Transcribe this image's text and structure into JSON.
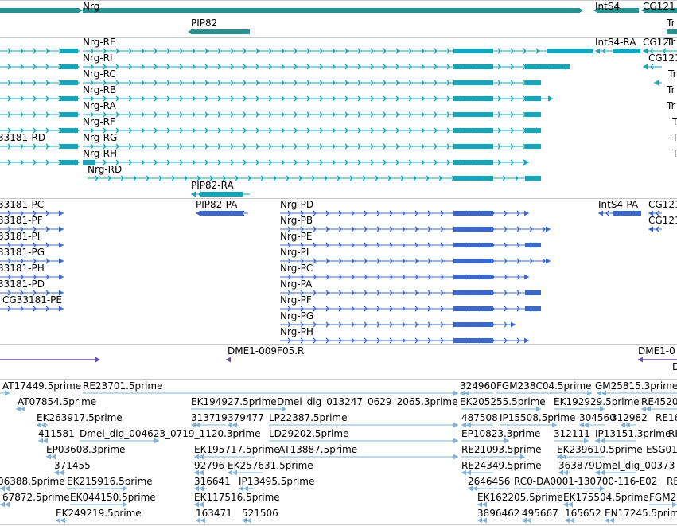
{
  "viewer": {
    "colors": {
      "gene": "#2a8f8f",
      "rna": "#12a6bb",
      "protein": "#3a68cc",
      "oligo": "#6a4ea8",
      "est": "#7fb3d9",
      "separator": "#c8c8c8",
      "text": "#000000"
    },
    "gene_track": {
      "items": [
        {
          "label": "Nrg"
        },
        {
          "label": "IntS4"
        },
        {
          "label": "CG121"
        },
        {
          "label": "PIP82"
        },
        {
          "label": "Tr"
        }
      ]
    },
    "rna_track": {
      "items": [
        {
          "label": "Nrg-RE"
        },
        {
          "label": "Nrg-RI"
        },
        {
          "label": "Nrg-RC"
        },
        {
          "label": "Nrg-RB"
        },
        {
          "label": "Nrg-RA"
        },
        {
          "label": "Nrg-RF"
        },
        {
          "label": "Nrg-RG"
        },
        {
          "label": "Nrg-RH"
        },
        {
          "label": "Nrg-RD"
        },
        {
          "label": "33181-RD"
        },
        {
          "label": "IntS4-RA"
        },
        {
          "label": "CG121"
        },
        {
          "label": "CG121"
        },
        {
          "label": "Tr"
        },
        {
          "label": "Tr"
        },
        {
          "label": "Tr"
        },
        {
          "label": "Tr"
        },
        {
          "label": "T"
        },
        {
          "label": "T"
        },
        {
          "label": "T"
        },
        {
          "label": "PIP82-RA"
        }
      ]
    },
    "protein_track": {
      "items": [
        {
          "label": "33181-PC"
        },
        {
          "label": "33181-PF"
        },
        {
          "label": "33181-PI"
        },
        {
          "label": "33181-PG"
        },
        {
          "label": "33181-PH"
        },
        {
          "label": "33181-PD"
        },
        {
          "label": "CG33181-PE"
        },
        {
          "label": "PIP82-PA"
        },
        {
          "label": "Nrg-PD"
        },
        {
          "label": "Nrg-PB"
        },
        {
          "label": "Nrg-PE"
        },
        {
          "label": "Nrg-PI"
        },
        {
          "label": "Nrg-PC"
        },
        {
          "label": "Nrg-PA"
        },
        {
          "label": "Nrg-PF"
        },
        {
          "label": "Nrg-PG"
        },
        {
          "label": "Nrg-PH"
        },
        {
          "label": "IntS4-PA"
        },
        {
          "label": "CG121"
        },
        {
          "label": "CG121"
        }
      ]
    },
    "oligo_track": {
      "items": [
        {
          "label": "DME1-009F05.R"
        },
        {
          "label": "DME1-0"
        },
        {
          "label": "D"
        }
      ]
    },
    "est_track": {
      "items": [
        {
          "label": "AT17449.5prime"
        },
        {
          "label": "RE23701.5prime"
        },
        {
          "label": "324960"
        },
        {
          "label": "FGM238C04.5prime"
        },
        {
          "label": "GM25815.3prime"
        },
        {
          "label": "AT07854.5prime"
        },
        {
          "label": "EK194927.5prime"
        },
        {
          "label": "Dmel_dig_013247_0629_2065.3prime"
        },
        {
          "label": "EK205255.5prime"
        },
        {
          "label": "EK192929.5prime"
        },
        {
          "label": "RE4520"
        },
        {
          "label": "EK263917.5prime"
        },
        {
          "label": "313719"
        },
        {
          "label": "379477"
        },
        {
          "label": "LP22387.5prime"
        },
        {
          "label": "487508"
        },
        {
          "label": "IP15508.5prime"
        },
        {
          "label": "304560"
        },
        {
          "label": "312982"
        },
        {
          "label": "RE16"
        },
        {
          "label": "411581"
        },
        {
          "label": "Dmel_dig_004623_0719_1120.3prime"
        },
        {
          "label": "LD29202.5prime"
        },
        {
          "label": "EP10823.3prime"
        },
        {
          "label": "312111"
        },
        {
          "label": "IP13151.3prime"
        },
        {
          "label": "RE"
        },
        {
          "label": "EP03608.3prime"
        },
        {
          "label": "EK195717.5prime"
        },
        {
          "label": "AT13887.5prime"
        },
        {
          "label": "RE21093.5prime"
        },
        {
          "label": "EK239610.5prime"
        },
        {
          "label": "ESG01"
        },
        {
          "label": "371455"
        },
        {
          "label": "92796"
        },
        {
          "label": "EK257631.5prime"
        },
        {
          "label": "RE24349.5prime"
        },
        {
          "label": "363879"
        },
        {
          "label": "Dmel_dig_00373"
        },
        {
          "label": "06388.5prime"
        },
        {
          "label": "EK215916.5prime"
        },
        {
          "label": "316641"
        },
        {
          "label": "IP13495.5prime"
        },
        {
          "label": "2646456"
        },
        {
          "label": "RC0-DA0001-130700-116-E02"
        },
        {
          "label": "RE"
        },
        {
          "label": "67872.5prime"
        },
        {
          "label": "EK044150.5prime"
        },
        {
          "label": "EK117516.5prime"
        },
        {
          "label": "EK162205.5prime"
        },
        {
          "label": "EK175504.5prime"
        },
        {
          "label": "FGM2"
        },
        {
          "label": "EK249219.5prime"
        },
        {
          "label": "163471"
        },
        {
          "label": "521506"
        },
        {
          "label": "3896462"
        },
        {
          "label": "495667"
        },
        {
          "label": "165652"
        },
        {
          "label": "EN17245.5prime"
        }
      ]
    }
  }
}
